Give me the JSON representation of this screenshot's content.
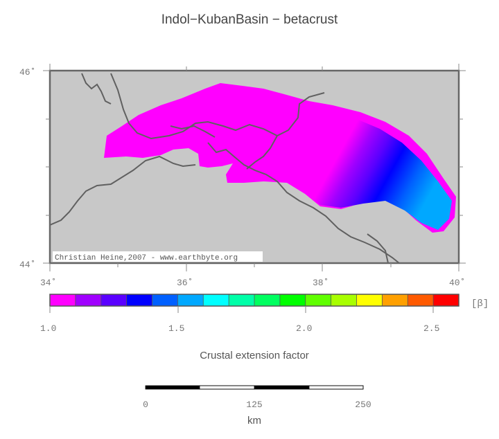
{
  "title": "Indol−KubanBasin − betacrust",
  "map": {
    "lat_labels": [
      "46˚",
      "44˚"
    ],
    "lon_labels": [
      "34˚",
      "36˚",
      "38˚",
      "40˚"
    ],
    "credit": "Christian Heine,2007 - www.earthbyte.org",
    "land_color": "#c8c8c8",
    "coast_color": "#606060"
  },
  "colorbar": {
    "unit": "[β]",
    "ticks": [
      "1.0",
      "1.5",
      "2.0",
      "2.5"
    ],
    "colors": [
      "#ff00ff",
      "#a000ff",
      "#5a00ff",
      "#0000ff",
      "#0060ff",
      "#00a8ff",
      "#00ffff",
      "#00ffa8",
      "#00ff60",
      "#00ff00",
      "#60ff00",
      "#a8ff00",
      "#ffff00",
      "#ffa000",
      "#ff5a00",
      "#ff0000"
    ],
    "label": "Crustal extension factor"
  },
  "scalebar": {
    "ticks": [
      "0",
      "125",
      "250"
    ],
    "unit": "km"
  }
}
